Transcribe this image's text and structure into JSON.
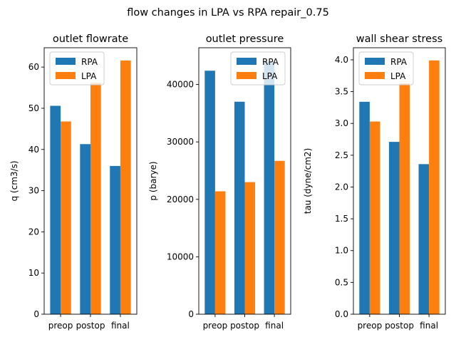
{
  "figure": {
    "suptitle": "flow changes in LPA vs RPA repair_0.75"
  },
  "colors": {
    "RPA": "#1f77b4",
    "LPA": "#ff7f0e"
  },
  "chart_data": [
    {
      "type": "bar",
      "title": "outlet flowrate",
      "xlabel": "",
      "ylabel": "q (cm3/s)",
      "categories": [
        "preop",
        "postop",
        "final"
      ],
      "series": [
        {
          "name": "RPA",
          "values": [
            50.6,
            41.3,
            36.0
          ]
        },
        {
          "name": "LPA",
          "values": [
            46.8,
            56.2,
            61.6
          ]
        }
      ],
      "ylim": [
        0,
        64.7
      ],
      "yticks": [
        0,
        10,
        20,
        30,
        40,
        50,
        60
      ],
      "ytick_labels": [
        "0",
        "10",
        "20",
        "30",
        "40",
        "50",
        "60"
      ],
      "legend": "upper left",
      "grid": false
    },
    {
      "type": "bar",
      "title": "outlet pressure",
      "xlabel": "",
      "ylabel": "p (barye)",
      "categories": [
        "preop",
        "postop",
        "final"
      ],
      "series": [
        {
          "name": "RPA",
          "values": [
            42400,
            37000,
            44000
          ]
        },
        {
          "name": "LPA",
          "values": [
            21400,
            23000,
            26700
          ]
        }
      ],
      "ylim": [
        0,
        46400
      ],
      "yticks": [
        0,
        10000,
        20000,
        30000,
        40000
      ],
      "ytick_labels": [
        "0",
        "10000",
        "20000",
        "30000",
        "40000"
      ],
      "legend": "upper right",
      "grid": false
    },
    {
      "type": "bar",
      "title": "wall shear stress",
      "xlabel": "",
      "ylabel": "tau (dyne/cm2)",
      "categories": [
        "preop",
        "postop",
        "final"
      ],
      "series": [
        {
          "name": "RPA",
          "values": [
            3.34,
            2.71,
            2.36
          ]
        },
        {
          "name": "LPA",
          "values": [
            3.03,
            3.63,
            3.99
          ]
        }
      ],
      "ylim": [
        0,
        4.19
      ],
      "yticks": [
        0,
        0.5,
        1.0,
        1.5,
        2.0,
        2.5,
        3.0,
        3.5,
        4.0
      ],
      "ytick_labels": [
        "0.0",
        "0.5",
        "1.0",
        "1.5",
        "2.0",
        "2.5",
        "3.0",
        "3.5",
        "4.0"
      ],
      "legend": "upper left",
      "grid": false
    }
  ]
}
